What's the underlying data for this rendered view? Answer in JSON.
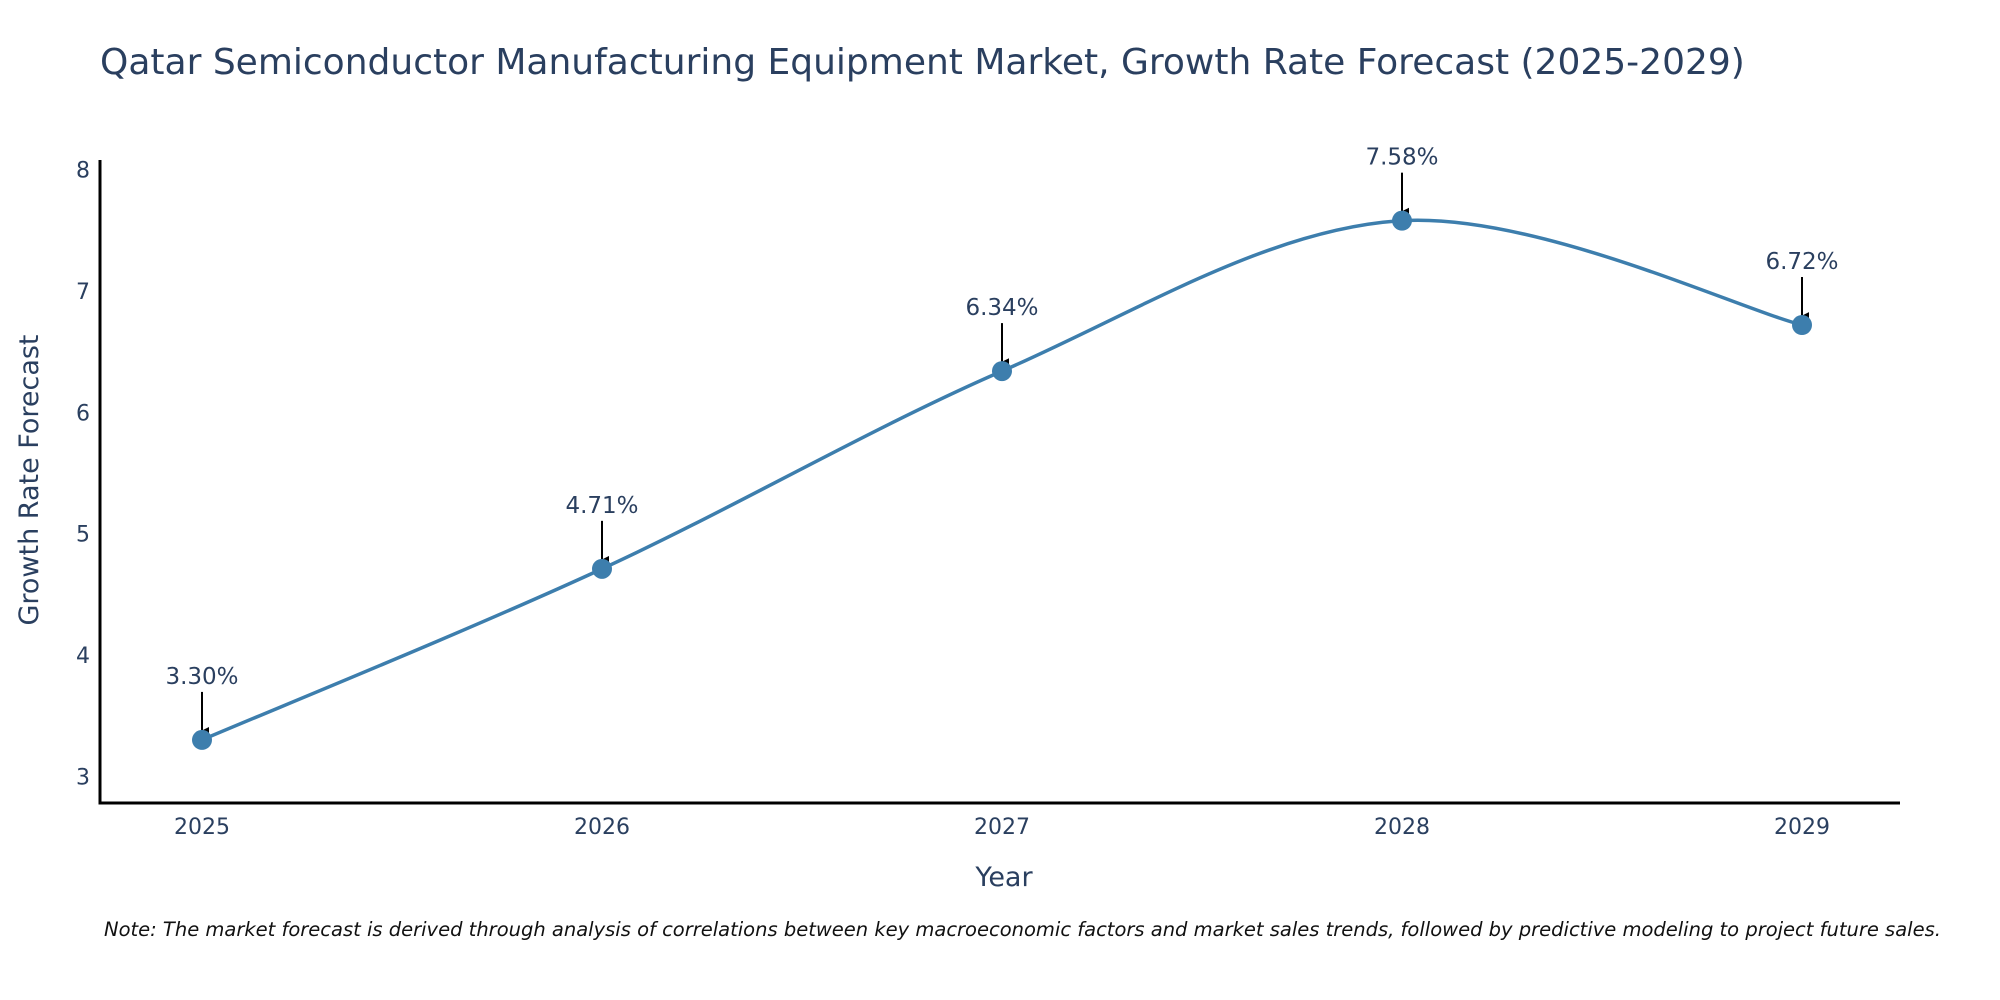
{
  "chart_data": {
    "type": "line",
    "title": "Qatar Semiconductor Manufacturing Equipment Market, Growth Rate Forecast (2025-2029)",
    "xlabel": "Year",
    "ylabel": "Growth Rate Forecast",
    "categories": [
      "2025",
      "2026",
      "2027",
      "2028",
      "2029"
    ],
    "series": [
      {
        "name": "Growth Rate Forecast",
        "values": [
          3.3,
          4.71,
          6.34,
          7.58,
          6.72
        ]
      }
    ],
    "data_labels": [
      "3.30%",
      "4.71%",
      "6.34%",
      "7.58%",
      "6.72%"
    ],
    "yticks": [
      "3",
      "4",
      "5",
      "6",
      "7",
      "8"
    ],
    "ylim": [
      2.78,
      8.08
    ],
    "grid": false,
    "line_shape": "spline",
    "colors": {
      "line": "#3d7ead",
      "marker": "#3d7ead",
      "arrow": "#000000",
      "axis": "#000000"
    }
  },
  "note": "Note: The market forecast is derived through analysis of correlations between key macroeconomic factors and market sales trends, followed by predictive modeling to project future sales."
}
